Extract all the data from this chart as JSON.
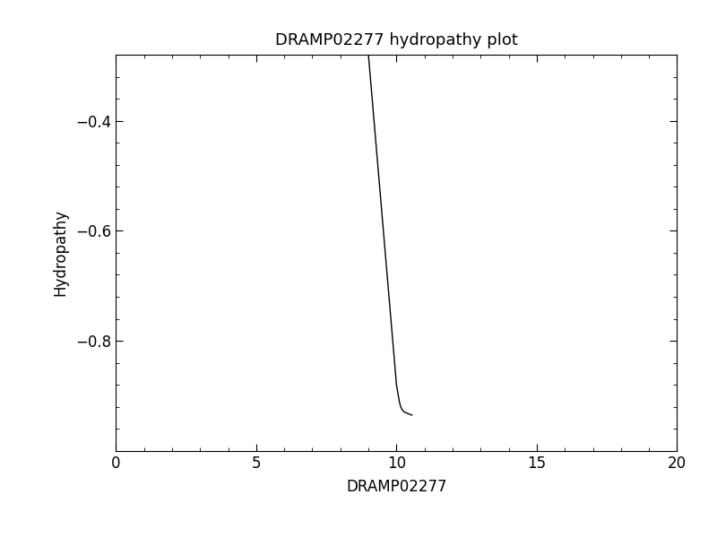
{
  "title": "DRAMP02277 hydropathy plot",
  "xlabel": "DRAMP02277",
  "ylabel": "Hydropathy",
  "xlim": [
    0,
    20
  ],
  "ylim": [
    -1.0,
    -0.28
  ],
  "xticks": [
    0,
    5,
    10,
    15,
    20
  ],
  "yticks": [
    -0.8,
    -0.6,
    -0.4
  ],
  "line_x": [
    9.0,
    9.05,
    9.1,
    9.15,
    9.2,
    9.25,
    9.3,
    9.35,
    9.4,
    9.45,
    9.5,
    9.55,
    9.6,
    9.65,
    9.7,
    9.75,
    9.8,
    9.85,
    9.9,
    9.95,
    10.0,
    10.05,
    10.1,
    10.15,
    10.2,
    10.25,
    10.3,
    10.35,
    10.4,
    10.45,
    10.5,
    10.55
  ],
  "line_y": [
    -0.28,
    -0.31,
    -0.34,
    -0.37,
    -0.4,
    -0.43,
    -0.46,
    -0.49,
    -0.52,
    -0.55,
    -0.58,
    -0.61,
    -0.64,
    -0.67,
    -0.7,
    -0.73,
    -0.76,
    -0.79,
    -0.82,
    -0.85,
    -0.88,
    -0.895,
    -0.91,
    -0.92,
    -0.925,
    -0.928,
    -0.93,
    -0.931,
    -0.932,
    -0.933,
    -0.934,
    -0.935
  ],
  "line_color": "#000000",
  "line_width": 1.0,
  "bg_color": "#ffffff",
  "title_fontsize": 13,
  "label_fontsize": 12,
  "tick_fontsize": 12,
  "x_minor_ticks": 5,
  "y_minor_ticks": 5
}
